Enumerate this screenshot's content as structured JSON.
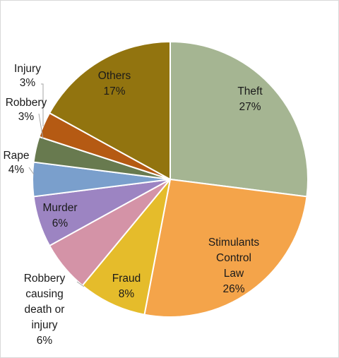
{
  "chart_data": {
    "type": "pie",
    "title": "",
    "slices": [
      {
        "lines": [
          "Theft",
          "27%"
        ],
        "value": 27,
        "color": "#a5b592"
      },
      {
        "lines": [
          "Stimulants",
          "Control",
          "Law",
          "26%"
        ],
        "value": 26,
        "color": "#f4a44a"
      },
      {
        "lines": [
          "Fraud",
          "8%"
        ],
        "value": 8,
        "color": "#e5bc2b"
      },
      {
        "lines": [
          "Robbery",
          "causing",
          "death or",
          "injury",
          "6%"
        ],
        "value": 6,
        "color": "#d493a7"
      },
      {
        "lines": [
          "Murder",
          "6%"
        ],
        "value": 6,
        "color": "#9c84c2"
      },
      {
        "lines": [
          "Rape",
          "4%"
        ],
        "value": 4,
        "color": "#7a9fcc"
      },
      {
        "lines": [
          "Robbery",
          "3%"
        ],
        "value": 3,
        "color": "#687a4f"
      },
      {
        "lines": [
          "Injury",
          "3%"
        ],
        "value": 3,
        "color": "#b55a13"
      },
      {
        "lines": [
          "Others",
          "17%"
        ],
        "value": 17,
        "color": "#92740f"
      }
    ],
    "legend": "none",
    "data_labels": "category and percent"
  }
}
